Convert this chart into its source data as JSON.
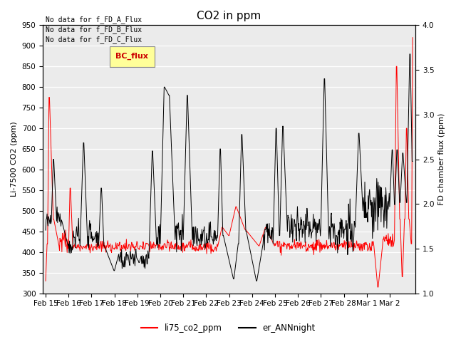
{
  "title": "CO2 in ppm",
  "ylabel_left": "Li-7500 CO2 (ppm)",
  "ylabel_right": "FD chamber flux (ppm)",
  "ylim_left": [
    300,
    950
  ],
  "ylim_right": [
    1.0,
    4.0
  ],
  "yticks_left": [
    300,
    350,
    400,
    450,
    500,
    550,
    600,
    650,
    700,
    750,
    800,
    850,
    900,
    950
  ],
  "yticks_right": [
    1.0,
    1.5,
    2.0,
    2.5,
    3.0,
    3.5,
    4.0
  ],
  "xtick_labels": [
    "Feb 15",
    "Feb 16",
    "Feb 17",
    "Feb 18",
    "Feb 19",
    "Feb 20",
    "Feb 21",
    "Feb 22",
    "Feb 23",
    "Feb 24",
    "Feb 25",
    "Feb 26",
    "Feb 27",
    "Feb 28",
    "Mar 1",
    "Mar 2"
  ],
  "line1_color": "#ff0000",
  "line1_label": "li75_co2_ppm",
  "line2_color": "#000000",
  "line2_label": "er_ANNnight",
  "no_data_texts": [
    "No data for f_FD_A_Flux",
    "No data for f_FD_B_Flux",
    "No data for f_FD_C_Flux"
  ],
  "legend_bc_flux": "BC_flux",
  "legend_bc_color": "#cc0000",
  "legend_bc_bg": "#ffff99",
  "plot_bg_color": "#ebebeb",
  "title_fontsize": 11,
  "label_fontsize": 8,
  "tick_fontsize": 7.5
}
